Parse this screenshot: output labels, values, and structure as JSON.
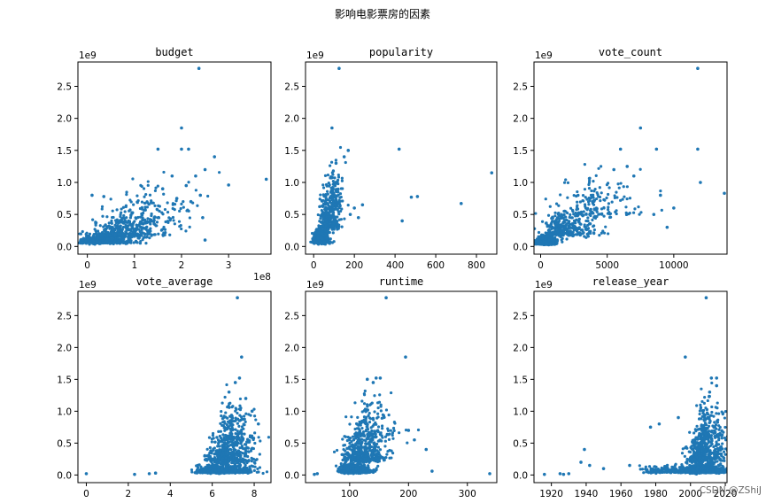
{
  "figure": {
    "title": "影响电影票房的因素",
    "watermark": "CSDN @ZShiJ"
  },
  "chart_data": [
    {
      "type": "scatter",
      "title": "budget",
      "xlim": [
        -0.2,
        3.9
      ],
      "xticks": [
        0,
        1,
        2,
        3
      ],
      "xtick_labels": [
        "0",
        "1",
        "2",
        "3"
      ],
      "x_multiplier": "1e8",
      "ylim": [
        -0.12,
        2.88
      ],
      "yticks": [
        0,
        0.5,
        1.0,
        1.5,
        2.0,
        2.5
      ],
      "ytick_labels": [
        "0.0",
        "0.5",
        "1.0",
        "1.5",
        "2.0",
        "2.5"
      ],
      "y_multiplier": "1e9",
      "color": "#1f77b4",
      "points": [
        [
          2.37,
          2.78
        ],
        [
          2.0,
          1.85
        ],
        [
          1.5,
          1.52
        ],
        [
          2.0,
          1.52
        ],
        [
          2.15,
          1.52
        ],
        [
          2.7,
          1.4
        ],
        [
          3.8,
          1.05
        ],
        [
          3.0,
          0.96
        ],
        [
          2.5,
          1.2
        ],
        [
          2.3,
          1.1
        ],
        [
          2.1,
          0.95
        ],
        [
          1.8,
          1.1
        ],
        [
          1.6,
          0.9
        ],
        [
          2.4,
          0.8
        ],
        [
          2.2,
          0.7
        ],
        [
          1.9,
          0.75
        ],
        [
          2.45,
          0.45
        ],
        [
          2.5,
          0.1
        ],
        [
          0.1,
          0.8
        ],
        [
          0.35,
          0.78
        ]
      ],
      "clusters": [
        {
          "cx": 0.3,
          "cy": 0.07,
          "sx": 0.35,
          "sy": 0.06,
          "n": 520
        },
        {
          "cx": 0.75,
          "cy": 0.2,
          "sx": 0.45,
          "sy": 0.15,
          "n": 300
        },
        {
          "cx": 1.3,
          "cy": 0.42,
          "sx": 0.5,
          "sy": 0.26,
          "n": 150
        }
      ]
    },
    {
      "type": "scatter",
      "title": "popularity",
      "xlim": [
        -40,
        900
      ],
      "xticks": [
        0,
        200,
        400,
        600,
        800
      ],
      "xtick_labels": [
        "0",
        "200",
        "400",
        "600",
        "800"
      ],
      "x_multiplier": "",
      "ylim": [
        -0.12,
        2.88
      ],
      "yticks": [
        0,
        0.5,
        1.0,
        1.5,
        2.0,
        2.5
      ],
      "ytick_labels": [
        "0.0",
        "0.5",
        "1.0",
        "1.5",
        "2.0",
        "2.5"
      ],
      "y_multiplier": "1e9",
      "color": "#1f77b4",
      "points": [
        [
          125,
          2.78
        ],
        [
          90,
          1.85
        ],
        [
          420,
          1.52
        ],
        [
          875,
          1.15
        ],
        [
          725,
          0.67
        ],
        [
          510,
          0.78
        ],
        [
          480,
          0.77
        ],
        [
          435,
          0.4
        ],
        [
          240,
          0.65
        ],
        [
          200,
          0.6
        ],
        [
          170,
          1.5
        ],
        [
          150,
          1.4
        ],
        [
          110,
          1.3
        ],
        [
          180,
          0.5
        ],
        [
          220,
          0.45
        ]
      ],
      "clusters": [
        {
          "cx": 28,
          "cy": 0.08,
          "sx": 22,
          "sy": 0.07,
          "n": 560
        },
        {
          "cx": 70,
          "cy": 0.35,
          "sx": 30,
          "sy": 0.25,
          "n": 300
        },
        {
          "cx": 100,
          "cy": 0.7,
          "sx": 25,
          "sy": 0.3,
          "n": 100
        }
      ]
    },
    {
      "type": "scatter",
      "title": "vote_count",
      "xlim": [
        -500,
        14000
      ],
      "xticks": [
        0,
        5000,
        10000
      ],
      "xtick_labels": [
        "0",
        "5000",
        "10000"
      ],
      "x_multiplier": "",
      "ylim": [
        -0.12,
        2.88
      ],
      "yticks": [
        0,
        0.5,
        1.0,
        1.5,
        2.0,
        2.5
      ],
      "ytick_labels": [
        "0.0",
        "0.5",
        "1.0",
        "1.5",
        "2.0",
        "2.5"
      ],
      "y_multiplier": "1e9",
      "color": "#1f77b4",
      "points": [
        [
          11800,
          2.78
        ],
        [
          7500,
          1.85
        ],
        [
          11800,
          1.52
        ],
        [
          8700,
          1.52
        ],
        [
          6000,
          1.52
        ],
        [
          12000,
          1.0
        ],
        [
          13800,
          0.83
        ],
        [
          9000,
          0.8
        ],
        [
          10000,
          0.6
        ],
        [
          8500,
          0.5
        ],
        [
          9500,
          0.3
        ],
        [
          6500,
          1.25
        ],
        [
          7000,
          1.1
        ],
        [
          5500,
          1.2
        ]
      ],
      "clusters": [
        {
          "cx": 300,
          "cy": 0.05,
          "sx": 450,
          "sy": 0.05,
          "n": 520
        },
        {
          "cx": 1800,
          "cy": 0.22,
          "sx": 1300,
          "sy": 0.16,
          "n": 320
        },
        {
          "cx": 4200,
          "cy": 0.55,
          "sx": 1900,
          "sy": 0.28,
          "n": 160
        }
      ]
    },
    {
      "type": "scatter",
      "title": "vote_average",
      "xlim": [
        -0.4,
        8.8
      ],
      "xticks": [
        0,
        2,
        4,
        6,
        8
      ],
      "xtick_labels": [
        "0",
        "2",
        "4",
        "6",
        "8"
      ],
      "x_multiplier": "",
      "ylim": [
        -0.12,
        2.88
      ],
      "yticks": [
        0,
        0.5,
        1.0,
        1.5,
        2.0,
        2.5
      ],
      "ytick_labels": [
        "0.0",
        "0.5",
        "1.0",
        "1.5",
        "2.0",
        "2.5"
      ],
      "y_multiplier": "1e9",
      "color": "#1f77b4",
      "points": [
        [
          7.2,
          2.78
        ],
        [
          7.4,
          1.85
        ],
        [
          7.3,
          1.52
        ],
        [
          7.1,
          1.45
        ],
        [
          6.8,
          1.3
        ],
        [
          7.6,
          1.2
        ],
        [
          0.0,
          0.02
        ],
        [
          2.3,
          0.01
        ],
        [
          3.0,
          0.02
        ],
        [
          3.3,
          0.03
        ],
        [
          8.2,
          0.8
        ],
        [
          7.9,
          1.0
        ]
      ],
      "clusters": [
        {
          "cx": 6.3,
          "cy": 0.05,
          "sx": 0.8,
          "sy": 0.05,
          "n": 620
        },
        {
          "cx": 6.6,
          "cy": 0.25,
          "sx": 0.65,
          "sy": 0.17,
          "n": 400
        },
        {
          "cx": 7.0,
          "cy": 0.6,
          "sx": 0.55,
          "sy": 0.3,
          "n": 180
        }
      ]
    },
    {
      "type": "scatter",
      "title": "runtime",
      "xlim": [
        25,
        350
      ],
      "xticks": [
        100,
        200,
        300
      ],
      "xtick_labels": [
        "100",
        "200",
        "300"
      ],
      "x_multiplier": "",
      "ylim": [
        -0.12,
        2.88
      ],
      "yticks": [
        0,
        0.5,
        1.0,
        1.5,
        2.0,
        2.5
      ],
      "ytick_labels": [
        "0.0",
        "0.5",
        "1.0",
        "1.5",
        "2.0",
        "2.5"
      ],
      "y_multiplier": "1e9",
      "color": "#1f77b4",
      "points": [
        [
          162,
          2.78
        ],
        [
          195,
          1.85
        ],
        [
          152,
          1.52
        ],
        [
          145,
          1.52
        ],
        [
          130,
          1.5
        ],
        [
          140,
          1.45
        ],
        [
          338,
          0.02
        ],
        [
          240,
          0.06
        ],
        [
          230,
          0.4
        ],
        [
          45,
          0.02
        ],
        [
          40,
          0.01
        ],
        [
          210,
          0.55
        ],
        [
          200,
          0.7
        ]
      ],
      "clusters": [
        {
          "cx": 105,
          "cy": 0.05,
          "sx": 15,
          "sy": 0.05,
          "n": 600
        },
        {
          "cx": 118,
          "cy": 0.28,
          "sx": 22,
          "sy": 0.2,
          "n": 400
        },
        {
          "cx": 135,
          "cy": 0.65,
          "sx": 25,
          "sy": 0.3,
          "n": 150
        }
      ]
    },
    {
      "type": "scatter",
      "title": "release_year",
      "xlim": [
        1910,
        2021
      ],
      "xticks": [
        1920,
        1940,
        1960,
        1980,
        2000,
        2020
      ],
      "xtick_labels": [
        "1920",
        "1940",
        "1960",
        "1980",
        "2000",
        "2020"
      ],
      "x_multiplier": "",
      "ylim": [
        -0.12,
        2.88
      ],
      "yticks": [
        0,
        0.5,
        1.0,
        1.5,
        2.0,
        2.5
      ],
      "ytick_labels": [
        "0.0",
        "0.5",
        "1.0",
        "1.5",
        "2.0",
        "2.5"
      ],
      "y_multiplier": "1e9",
      "color": "#1f77b4",
      "points": [
        [
          2009,
          2.78
        ],
        [
          1997,
          1.85
        ],
        [
          2012,
          1.52
        ],
        [
          2015,
          1.52
        ],
        [
          2015,
          1.4
        ],
        [
          2011,
          1.3
        ],
        [
          1939,
          0.4
        ],
        [
          1937,
          0.2
        ],
        [
          1942,
          0.15
        ],
        [
          1916,
          0.01
        ],
        [
          1925,
          0.02
        ],
        [
          1927,
          0.01
        ],
        [
          1930,
          0.02
        ],
        [
          1950,
          0.1
        ],
        [
          1965,
          0.15
        ],
        [
          1977,
          0.75
        ],
        [
          1982,
          0.8
        ],
        [
          1993,
          0.9
        ]
      ],
      "clusters": [
        {
          "cx": 2006,
          "cy": 0.05,
          "sx": 8,
          "sy": 0.05,
          "n": 650
        },
        {
          "cx": 2007,
          "cy": 0.28,
          "sx": 7,
          "sy": 0.2,
          "n": 400
        },
        {
          "cx": 2010,
          "cy": 0.65,
          "sx": 5,
          "sy": 0.3,
          "n": 170
        },
        {
          "cx": 1985,
          "cy": 0.05,
          "sx": 12,
          "sy": 0.05,
          "n": 150
        }
      ]
    }
  ]
}
